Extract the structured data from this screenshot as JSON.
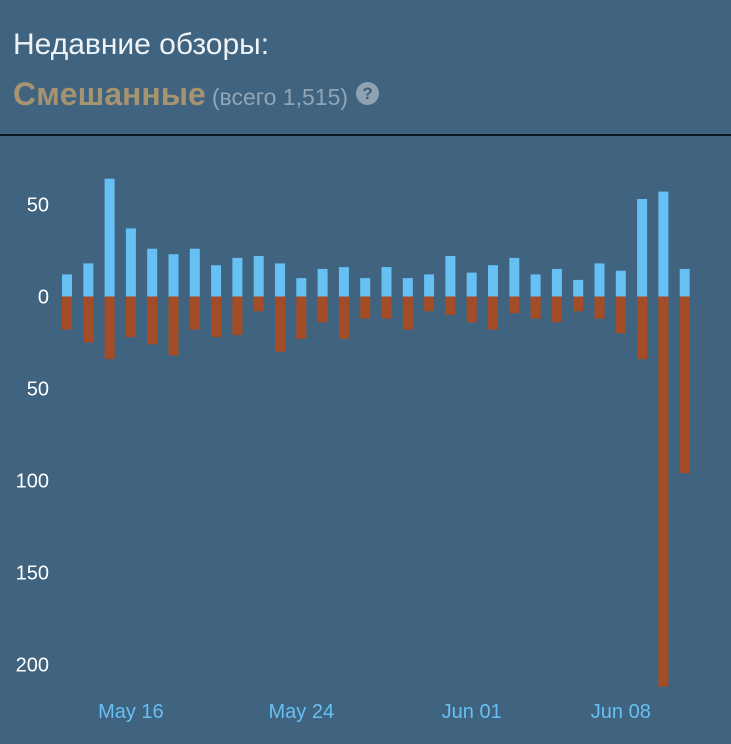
{
  "header": {
    "title": "Недавние обзоры:",
    "summary": "Смешанные",
    "count": "(всего 1,515)",
    "help_icon": "question-mark-icon",
    "help_glyph": "?"
  },
  "colors": {
    "background": "#40637f",
    "positive": "#66c0f4",
    "negative": "#a34c25",
    "summary": "#a69370",
    "text": "#ffffff",
    "date_label": "#66c0f4"
  },
  "chart_data": {
    "type": "bar",
    "title": "",
    "xlabel": "",
    "ylabel": "",
    "ylim": [
      -210,
      65
    ],
    "yticks": [
      {
        "value": 50,
        "label": "50"
      },
      {
        "value": 0,
        "label": "0"
      },
      {
        "value": -50,
        "label": "50"
      },
      {
        "value": -100,
        "label": "100"
      },
      {
        "value": -150,
        "label": "150"
      },
      {
        "value": -200,
        "label": "200"
      }
    ],
    "xticks": [
      {
        "index": 3,
        "label": "May 16"
      },
      {
        "index": 11,
        "label": "May 24"
      },
      {
        "index": 19,
        "label": "Jun 01"
      },
      {
        "index": 26,
        "label": "Jun 08"
      }
    ],
    "series": [
      {
        "values": [
          12,
          18,
          64,
          37,
          26,
          23,
          26,
          17,
          21,
          22,
          18,
          10,
          15,
          16,
          10,
          16,
          10,
          12,
          22,
          13,
          17,
          21,
          12,
          15,
          9,
          18,
          14,
          53,
          57,
          15
        ]
      },
      {
        "values": [
          -18,
          -25,
          -34,
          -22,
          -26,
          -32,
          -18,
          -22,
          -21,
          -8,
          -30,
          -23,
          -14,
          -23,
          -12,
          -12,
          -18,
          -8,
          -10,
          -14,
          -18,
          -9,
          -12,
          -14,
          -8,
          -12,
          -20,
          -34,
          -212,
          -96
        ]
      }
    ]
  }
}
